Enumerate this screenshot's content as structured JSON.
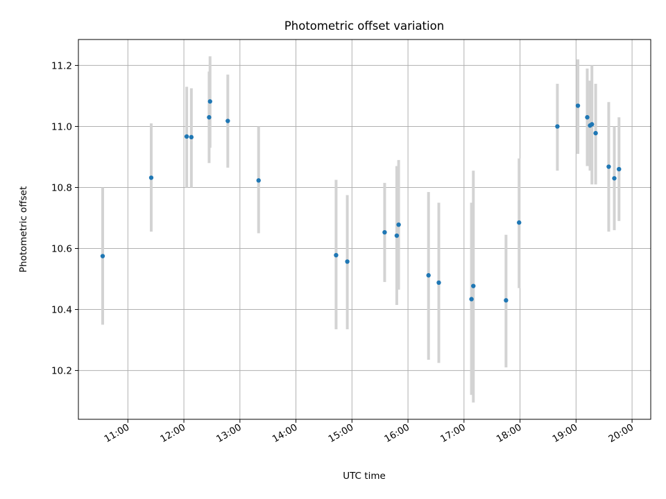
{
  "chart_data": {
    "type": "scatter",
    "title": "Photometric offset variation",
    "xlabel": "UTC time",
    "ylabel": "Photometric offset",
    "x_tick_labels": [
      "11:00",
      "12:00",
      "13:00",
      "14:00",
      "15:00",
      "16:00",
      "17:00",
      "18:00",
      "19:00",
      "20:00"
    ],
    "y_tick_labels": [
      "10.2",
      "10.4",
      "10.6",
      "10.8",
      "11.0",
      "11.2"
    ],
    "xlim": [
      "10:07",
      "20:20"
    ],
    "ylim": [
      10.04,
      11.285
    ],
    "grid": true,
    "legend": "none",
    "points": [
      {
        "x": "10:33",
        "y": 10.575,
        "err_low": 10.35,
        "err_high": 10.8
      },
      {
        "x": "11:25",
        "y": 10.832,
        "err_low": 10.655,
        "err_high": 11.01
      },
      {
        "x": "12:03",
        "y": 10.967,
        "err_low": 10.8,
        "err_high": 11.13
      },
      {
        "x": "12:08",
        "y": 10.965,
        "err_low": 10.8,
        "err_high": 11.125
      },
      {
        "x": "12:27",
        "y": 11.03,
        "err_low": 10.88,
        "err_high": 11.18
      },
      {
        "x": "12:28",
        "y": 11.082,
        "err_low": 10.93,
        "err_high": 11.23
      },
      {
        "x": "12:47",
        "y": 11.018,
        "err_low": 10.865,
        "err_high": 11.17
      },
      {
        "x": "13:20",
        "y": 10.823,
        "err_low": 10.65,
        "err_high": 11.0
      },
      {
        "x": "14:43",
        "y": 10.578,
        "err_low": 10.335,
        "err_high": 10.825
      },
      {
        "x": "14:55",
        "y": 10.557,
        "err_low": 10.335,
        "err_high": 10.775
      },
      {
        "x": "15:35",
        "y": 10.653,
        "err_low": 10.49,
        "err_high": 10.815
      },
      {
        "x": "15:48",
        "y": 10.642,
        "err_low": 10.415,
        "err_high": 10.87
      },
      {
        "x": "15:50",
        "y": 10.678,
        "err_low": 10.465,
        "err_high": 10.89
      },
      {
        "x": "16:22",
        "y": 10.512,
        "err_low": 10.235,
        "err_high": 10.785
      },
      {
        "x": "16:33",
        "y": 10.488,
        "err_low": 10.225,
        "err_high": 10.75
      },
      {
        "x": "17:08",
        "y": 10.434,
        "err_low": 10.12,
        "err_high": 10.75
      },
      {
        "x": "17:10",
        "y": 10.477,
        "err_low": 10.095,
        "err_high": 10.855
      },
      {
        "x": "17:45",
        "y": 10.43,
        "err_low": 10.21,
        "err_high": 10.645
      },
      {
        "x": "17:59",
        "y": 10.685,
        "err_low": 10.47,
        "err_high": 10.895
      },
      {
        "x": "18:40",
        "y": 11.0,
        "err_low": 10.855,
        "err_high": 11.14
      },
      {
        "x": "19:02",
        "y": 11.068,
        "err_low": 10.91,
        "err_high": 11.22
      },
      {
        "x": "19:12",
        "y": 11.03,
        "err_low": 10.87,
        "err_high": 11.19
      },
      {
        "x": "19:15",
        "y": 11.003,
        "err_low": 10.855,
        "err_high": 11.15
      },
      {
        "x": "19:17",
        "y": 11.007,
        "err_low": 10.81,
        "err_high": 11.2
      },
      {
        "x": "19:21",
        "y": 10.978,
        "err_low": 10.81,
        "err_high": 11.14
      },
      {
        "x": "19:35",
        "y": 10.868,
        "err_low": 10.655,
        "err_high": 11.08
      },
      {
        "x": "19:41",
        "y": 10.83,
        "err_low": 10.66,
        "err_high": 11.0
      },
      {
        "x": "19:46",
        "y": 10.86,
        "err_low": 10.69,
        "err_high": 11.03
      }
    ],
    "colors": {
      "marker": "#1f77b4",
      "errorbar": "#d3d3d3",
      "grid": "#b0b0b0",
      "axes": "#000000"
    }
  }
}
